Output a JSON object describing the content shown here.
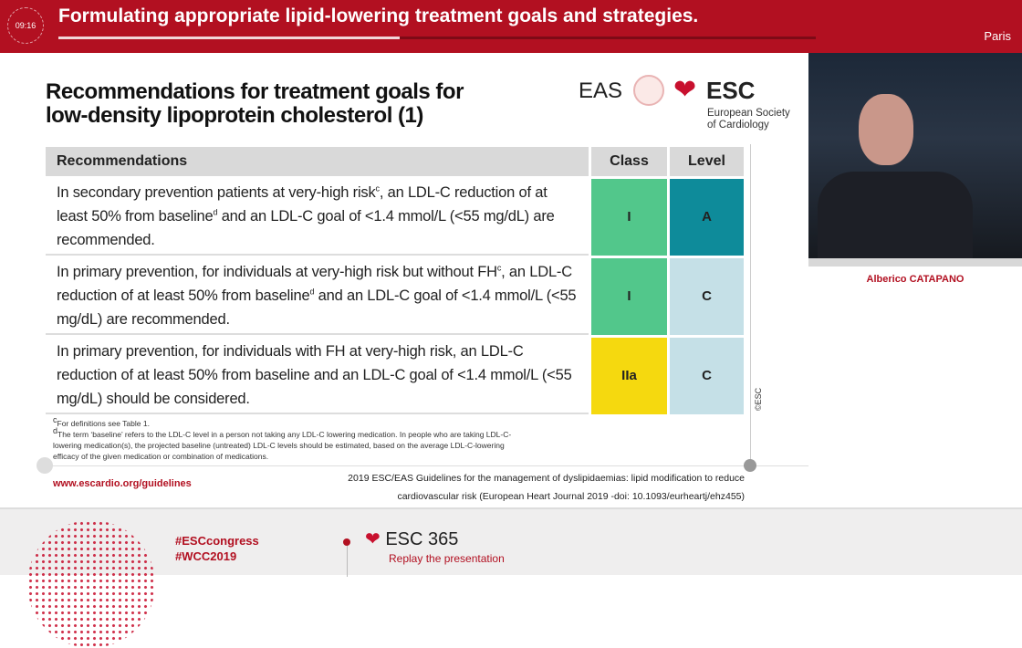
{
  "header": {
    "timer": "09:16",
    "title": "Formulating appropriate lipid-lowering treatment goals and strategies.",
    "progress_percent": 45,
    "city": "Paris"
  },
  "slide": {
    "title_line1": "Recommendations for treatment goals for",
    "title_line2": "low-density lipoprotein cholesterol (1)",
    "logos": {
      "eas": "EAS",
      "esc": "ESC",
      "esc_sub1": "European Society",
      "esc_sub2": "of Cardiology"
    },
    "table": {
      "headers": [
        "Recommendations",
        "Class",
        "Level"
      ],
      "rows": [
        {
          "text_a": "In secondary prevention patients at very-high risk",
          "sup1": "c",
          "text_b": ", an LDL-C reduction of at least 50% from baseline",
          "sup2": "d",
          "text_c": " and an LDL-C goal of <1.4 mmol/L (<55 mg/dL) are recommended.",
          "class": "I",
          "level": "A",
          "class_color": "#52c78b",
          "level_color": "#0e8b9a"
        },
        {
          "text_a": "In primary prevention, for individuals at very-high risk but without FH",
          "sup1": "c",
          "text_b": ", an LDL-C reduction of at least 50% from baseline",
          "sup2": "d",
          "text_c": " and an LDL-C goal of <1.4 mmol/L (<55 mg/dL) are recommended.",
          "class": "I",
          "level": "C",
          "class_color": "#52c78b",
          "level_color": "#c5e0e7"
        },
        {
          "text_a": "In primary prevention, for individuals with FH at very-high risk, an LDL-C reduction of at least 50% from baseline and an LDL-C goal of <1.4 mmol/L (<55 mg/dL) should be considered.",
          "sup1": "",
          "text_b": "",
          "sup2": "",
          "text_c": "",
          "class": "IIa",
          "level": "C",
          "class_color": "#f5d90f",
          "level_color": "#c5e0e7"
        }
      ]
    },
    "notes": {
      "n1_sup": "c",
      "n1": "For definitions see Table 1.",
      "n2_sup": "d",
      "n2": "The term ‘baseline’ refers to the LDL-C level in a person not taking any LDL-C lowering medication. In people who are taking LDL-C-lowering medication(s), the projected baseline (untreated) LDL-C levels should be estimated, based on the average LDL-C-lowering efficacy of the given medication or combination of medications."
    },
    "copyright": "©ESC",
    "url": "www.escardio.org/guidelines",
    "ref1": "2019 ESC/EAS Guidelines for the management of dyslipidaemias: lipid modification to reduce",
    "ref2": "cardiovascular risk (European Heart Journal 2019 -doi: 10.1093/eurheartj/ehz455)"
  },
  "speaker": {
    "name": "Alberico CATAPANO"
  },
  "footer": {
    "tag1": "#ESCcongress",
    "tag2": "#WCC2019",
    "esc365": "ESC 365",
    "replay": "Replay the presentation"
  }
}
